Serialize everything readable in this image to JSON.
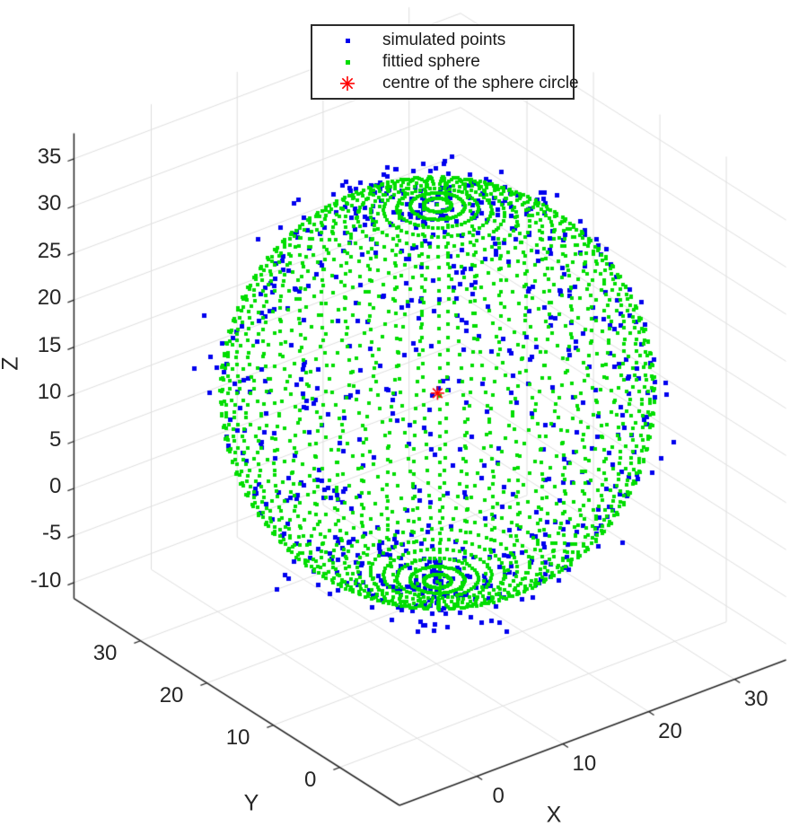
{
  "chart_data": {
    "type": "scatter",
    "projection": "3d",
    "title": "",
    "xlabel": "X",
    "ylabel": "Y",
    "zlabel": "Z",
    "xticks": [
      0,
      10,
      20,
      30
    ],
    "yticks": [
      0,
      10,
      20,
      30
    ],
    "zticks": [
      -10,
      -5,
      0,
      5,
      10,
      15,
      20,
      25,
      30,
      35
    ],
    "xlim": [
      -9,
      36
    ],
    "ylim": [
      -9,
      40
    ],
    "zlim": [
      -11.7,
      37.7
    ],
    "view": {
      "azimuth": -37.5,
      "elevation": 30
    },
    "grid": true,
    "colors": {
      "background": "#ffffff",
      "axis": "#262626",
      "grid": "#dedede",
      "tick_label": "#262626",
      "blue": "#0000ee",
      "green": "#00dd00",
      "red": "#ff0000"
    },
    "sphere_fit": {
      "center": [
        17.7,
        19.8,
        10
      ],
      "radius": 20
    },
    "series": [
      {
        "name": "simulated points",
        "marker": "square",
        "color": "#0000ee",
        "marker_px": 5,
        "generation": {
          "type": "random-sphere-surface",
          "center": [
            17.7,
            19.8,
            10
          ],
          "radius": 20,
          "radial_noise_sigma": 1.3,
          "count": 750,
          "sampling": "uniform-phi-theta",
          "seed": 42
        }
      },
      {
        "name": "fittied sphere",
        "marker": "square",
        "color": "#00dd00",
        "marker_px": 4,
        "generation": {
          "type": "lat-lon-grid",
          "center": [
            17.7,
            19.8,
            10
          ],
          "radius": 20,
          "n_lat": 51,
          "n_lon": 51
        }
      },
      {
        "name": "centre of the sphere circle",
        "marker": "asterisk",
        "color": "#ff0000",
        "marker_px": 15,
        "point": [
          17.7,
          19.8,
          10
        ]
      }
    ],
    "legend": {
      "position": "top-center",
      "labels": [
        "simulated points",
        "fittied sphere",
        "centre of the sphere circle"
      ]
    }
  }
}
